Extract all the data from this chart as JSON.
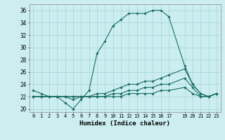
{
  "title": "",
  "xlabel": "Humidex (Indice chaleur)",
  "bg_color": "#cceef0",
  "grid_color": "#aad8dc",
  "line_color": "#1a6e64",
  "xlim": [
    -0.5,
    23.5
  ],
  "ylim": [
    19.5,
    37.0
  ],
  "yticks": [
    20,
    22,
    24,
    26,
    28,
    30,
    32,
    34,
    36
  ],
  "xtick_positions": [
    0,
    1,
    2,
    3,
    4,
    5,
    6,
    7,
    8,
    9,
    10,
    11,
    12,
    13,
    14,
    15,
    16,
    17,
    19,
    20,
    21,
    22,
    23
  ],
  "xtick_labels": [
    "0",
    "1",
    "2",
    "3",
    "4",
    "5",
    "6",
    "7",
    "8",
    "9",
    "10",
    "11",
    "12",
    "13",
    "14",
    "15",
    "16",
    "17",
    "19",
    "20",
    "21",
    "22",
    "23"
  ],
  "series": [
    {
      "x": [
        0,
        1,
        2,
        3,
        4,
        5,
        6,
        7,
        8,
        9,
        10,
        11,
        12,
        13,
        14,
        15,
        16,
        17,
        19,
        20,
        21,
        22,
        23
      ],
      "y": [
        23,
        22.5,
        22,
        22,
        21,
        20,
        21.5,
        23,
        29,
        31,
        33.5,
        34.5,
        35.5,
        35.5,
        35.5,
        36,
        36,
        35,
        27,
        24,
        22.5,
        22,
        22.5
      ]
    },
    {
      "x": [
        0,
        1,
        2,
        3,
        4,
        5,
        6,
        7,
        8,
        9,
        10,
        11,
        12,
        13,
        14,
        15,
        16,
        17,
        19,
        20,
        21,
        22,
        23
      ],
      "y": [
        22,
        22,
        22,
        22,
        22,
        22,
        22,
        22,
        22.5,
        22.5,
        23,
        23.5,
        24,
        24,
        24.5,
        24.5,
        25,
        25.5,
        26.5,
        24,
        22.5,
        22,
        22.5
      ]
    },
    {
      "x": [
        0,
        1,
        2,
        3,
        4,
        5,
        6,
        7,
        8,
        9,
        10,
        11,
        12,
        13,
        14,
        15,
        16,
        17,
        19,
        20,
        21,
        22,
        23
      ],
      "y": [
        22,
        22,
        22,
        22,
        22,
        22,
        22,
        22,
        22,
        22,
        22.5,
        22.5,
        23,
        23,
        23.5,
        23.5,
        24,
        24,
        25,
        23.5,
        22,
        22,
        22.5
      ]
    },
    {
      "x": [
        0,
        1,
        2,
        3,
        4,
        5,
        6,
        7,
        8,
        9,
        10,
        11,
        12,
        13,
        14,
        15,
        16,
        17,
        19,
        20,
        21,
        22,
        23
      ],
      "y": [
        22,
        22,
        22,
        22,
        22,
        21.5,
        22,
        22,
        22,
        22,
        22,
        22,
        22.5,
        22.5,
        22.5,
        22.5,
        23,
        23,
        23.5,
        22.5,
        22,
        22,
        22.5
      ]
    }
  ]
}
